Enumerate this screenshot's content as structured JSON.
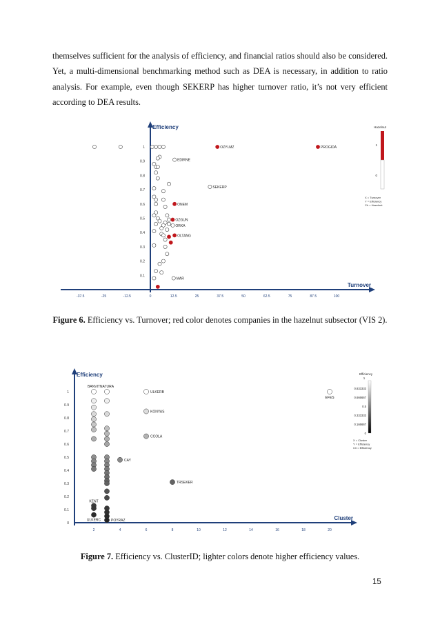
{
  "body_text": "themselves sufficient for the analysis of efficiency, and financial ratios should also be considered. Yet, a multi-dimensional benchmarking method such as DEA is necessary, in addition to ratio analysis. For example, even though SEKERP has higher turnover ratio, it’s not very efficient according to DEA results.",
  "figure6": {
    "caption_label": "Figure 6.",
    "caption_text": " Efficiency vs. Turnover; red color denotes companies in the hazelnut subsector (VIS 2)."
  },
  "figure7": {
    "caption_label": "Figure 7.",
    "caption_text": " Efficiency vs. ClusterID; lighter colors denote higher efficiency values."
  },
  "page_number": "15",
  "chart_data": [
    {
      "type": "scatter",
      "title": "",
      "xlabel": "Turnover",
      "ylabel": "Efficiency",
      "xlim": [
        -45,
        110
      ],
      "ylim": [
        0,
        1.1
      ],
      "x_ticks": [
        "-37.5",
        "-25",
        "-12.5",
        "0",
        "12.5",
        "25",
        "37.5",
        "50",
        "62.5",
        "75",
        "87.5",
        "100"
      ],
      "x_tick_values": [
        -37.5,
        -25,
        -12.5,
        0,
        12.5,
        25,
        37.5,
        50,
        62.5,
        75,
        87.5,
        100
      ],
      "y_ticks": [
        "0.1",
        "0.2",
        "0.3",
        "0.4",
        "0.5",
        "0.6",
        "0.7",
        "0.8",
        "0.9",
        "1"
      ],
      "colors": {
        "hazelnut": "#c0171c",
        "other": "#ffffff",
        "axis": "#1f3f7a"
      },
      "legend": {
        "title": "Hazelnut",
        "top_label": "1",
        "bottom_label": "0",
        "mapping": [
          "X = Turnover",
          "Y = Efficiency",
          "Clr = Hazelnut"
        ]
      },
      "points": [
        {
          "x": -30,
          "y": 1,
          "h": 0
        },
        {
          "x": -16,
          "y": 1,
          "h": 0
        },
        {
          "x": 1,
          "y": 1,
          "h": 0
        },
        {
          "x": 3,
          "y": 1,
          "h": 0
        },
        {
          "x": 5,
          "y": 1,
          "h": 0
        },
        {
          "x": 7,
          "y": 1,
          "h": 0
        },
        {
          "x": 36,
          "y": 1,
          "h": 1,
          "label": "OZYLMZ"
        },
        {
          "x": 90,
          "y": 1,
          "h": 1,
          "label": "PROGIDA"
        },
        {
          "x": 5,
          "y": 0.93,
          "h": 0
        },
        {
          "x": 4,
          "y": 0.92,
          "h": 0
        },
        {
          "x": 13,
          "y": 0.91,
          "h": 0,
          "label": "EDIRNE"
        },
        {
          "x": 2,
          "y": 0.88,
          "h": 0
        },
        {
          "x": 3,
          "y": 0.86,
          "h": 0
        },
        {
          "x": 4,
          "y": 0.86,
          "h": 0
        },
        {
          "x": 3,
          "y": 0.82,
          "h": 0
        },
        {
          "x": 4,
          "y": 0.78,
          "h": 0
        },
        {
          "x": 10,
          "y": 0.74,
          "h": 0
        },
        {
          "x": 32,
          "y": 0.72,
          "h": 0,
          "label": "SEKERP"
        },
        {
          "x": 2,
          "y": 0.71,
          "h": 0
        },
        {
          "x": 7,
          "y": 0.69,
          "h": 0
        },
        {
          "x": 2,
          "y": 0.65,
          "h": 0
        },
        {
          "x": 3,
          "y": 0.63,
          "h": 0
        },
        {
          "x": 7,
          "y": 0.63,
          "h": 0
        },
        {
          "x": 3,
          "y": 0.6,
          "h": 0
        },
        {
          "x": 13,
          "y": 0.6,
          "h": 1,
          "label": "ONEM"
        },
        {
          "x": 8,
          "y": 0.58,
          "h": 0
        },
        {
          "x": 3,
          "y": 0.54,
          "h": 0
        },
        {
          "x": 2,
          "y": 0.52,
          "h": 0
        },
        {
          "x": 9,
          "y": 0.52,
          "h": 0
        },
        {
          "x": 4,
          "y": 0.5,
          "h": 0
        },
        {
          "x": 5,
          "y": 0.48,
          "h": 0
        },
        {
          "x": 10,
          "y": 0.49,
          "h": 0
        },
        {
          "x": 12,
          "y": 0.49,
          "h": 1,
          "label": "OZGUN"
        },
        {
          "x": 8,
          "y": 0.47,
          "h": 0
        },
        {
          "x": 3,
          "y": 0.46,
          "h": 0
        },
        {
          "x": 10,
          "y": 0.46,
          "h": 0
        },
        {
          "x": 7,
          "y": 0.45,
          "h": 0
        },
        {
          "x": 12,
          "y": 0.45,
          "h": 0,
          "label": "ORKA"
        },
        {
          "x": 6,
          "y": 0.43,
          "h": 0
        },
        {
          "x": 9,
          "y": 0.42,
          "h": 0
        },
        {
          "x": 2,
          "y": 0.41,
          "h": 0
        },
        {
          "x": 6,
          "y": 0.39,
          "h": 0
        },
        {
          "x": 7,
          "y": 0.38,
          "h": 0
        },
        {
          "x": 13,
          "y": 0.38,
          "h": 1,
          "label": "OLTANG"
        },
        {
          "x": 10,
          "y": 0.37,
          "h": 1
        },
        {
          "x": 8,
          "y": 0.35,
          "h": 0
        },
        {
          "x": 2,
          "y": 0.31,
          "h": 0
        },
        {
          "x": 8,
          "y": 0.3,
          "h": 0
        },
        {
          "x": 11,
          "y": 0.33,
          "h": 1
        },
        {
          "x": 9,
          "y": 0.25,
          "h": 0
        },
        {
          "x": 7,
          "y": 0.2,
          "h": 0
        },
        {
          "x": 5,
          "y": 0.18,
          "h": 0
        },
        {
          "x": 3,
          "y": 0.13,
          "h": 0
        },
        {
          "x": 6,
          "y": 0.12,
          "h": 0
        },
        {
          "x": 2,
          "y": 0.08,
          "h": 0
        },
        {
          "x": 12.5,
          "y": 0.08,
          "h": 0,
          "label": "MAR"
        },
        {
          "x": 4,
          "y": 0.02,
          "h": 1
        }
      ]
    },
    {
      "type": "scatter",
      "title": "",
      "xlabel": "Cluster",
      "ylabel": "Efficiency",
      "xlim": [
        0.5,
        24
      ],
      "ylim": [
        0,
        1.1
      ],
      "x_ticks": [
        "2",
        "4",
        "6",
        "8",
        "10",
        "12",
        "14",
        "16",
        "18",
        "20"
      ],
      "x_tick_values": [
        2,
        4,
        6,
        8,
        10,
        12,
        14,
        16,
        18,
        20
      ],
      "y_ticks": [
        "0",
        "0.1",
        "0.2",
        "0.3",
        "0.4",
        "0.5",
        "0.6",
        "0.7",
        "0.8",
        "0.9",
        "1"
      ],
      "colors": {
        "axis": "#1f3f7a"
      },
      "legend": {
        "title": "Efficiency",
        "title_value": "1",
        "tick_labels": [
          "0.833333",
          "0.666667",
          "0.5",
          "0.333333",
          "0.166667",
          "0"
        ],
        "mapping": [
          "X = Cluster",
          "Y = Efficiency",
          "Clr = Efficiency"
        ]
      },
      "points": [
        {
          "x": 2,
          "y": 1,
          "label": "BANVIT"
        },
        {
          "x": 3,
          "y": 1,
          "label": "NATURA"
        },
        {
          "x": 6,
          "y": 1,
          "label": "ULKERB"
        },
        {
          "x": 20,
          "y": 1,
          "label": "EFES"
        },
        {
          "x": 2,
          "y": 0.93
        },
        {
          "x": 3,
          "y": 0.93
        },
        {
          "x": 2,
          "y": 0.88
        },
        {
          "x": 2,
          "y": 0.83
        },
        {
          "x": 3,
          "y": 0.83
        },
        {
          "x": 6,
          "y": 0.85,
          "label": "KONYAS"
        },
        {
          "x": 2,
          "y": 0.79
        },
        {
          "x": 2,
          "y": 0.75
        },
        {
          "x": 2,
          "y": 0.71
        },
        {
          "x": 3,
          "y": 0.72
        },
        {
          "x": 3,
          "y": 0.68
        },
        {
          "x": 6,
          "y": 0.66,
          "label": "CCOLA"
        },
        {
          "x": 2,
          "y": 0.64
        },
        {
          "x": 3,
          "y": 0.64
        },
        {
          "x": 3,
          "y": 0.6
        },
        {
          "x": 2,
          "y": 0.5
        },
        {
          "x": 3,
          "y": 0.5
        },
        {
          "x": 2,
          "y": 0.47
        },
        {
          "x": 3,
          "y": 0.47
        },
        {
          "x": 2,
          "y": 0.44
        },
        {
          "x": 3,
          "y": 0.44
        },
        {
          "x": 2,
          "y": 0.41
        },
        {
          "x": 3,
          "y": 0.41
        },
        {
          "x": 4,
          "y": 0.48,
          "label": "CAY"
        },
        {
          "x": 3,
          "y": 0.38
        },
        {
          "x": 3,
          "y": 0.35
        },
        {
          "x": 3,
          "y": 0.32
        },
        {
          "x": 3,
          "y": 0.3
        },
        {
          "x": 8,
          "y": 0.31,
          "label": "TRSEKER"
        },
        {
          "x": 3,
          "y": 0.24
        },
        {
          "x": 3,
          "y": 0.19
        },
        {
          "x": 2,
          "y": 0.13,
          "label": "KENT"
        },
        {
          "x": 2,
          "y": 0.11
        },
        {
          "x": 3,
          "y": 0.11
        },
        {
          "x": 3,
          "y": 0.08
        },
        {
          "x": 2,
          "y": 0.06,
          "label": "ULKERC"
        },
        {
          "x": 3,
          "y": 0.05
        },
        {
          "x": 3,
          "y": 0.02,
          "label": "POYRAZ"
        }
      ]
    }
  ]
}
